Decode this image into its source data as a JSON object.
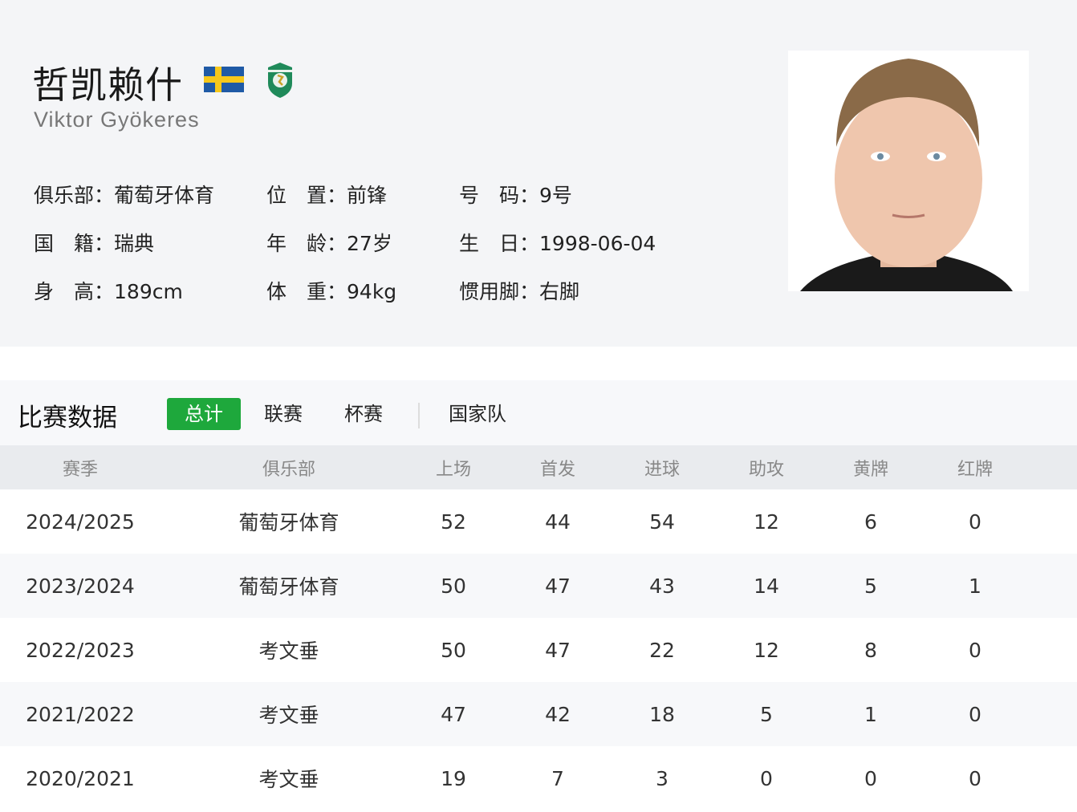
{
  "player": {
    "name_cn": "哲凯赖什",
    "name_en": "Viktor Gyökeres",
    "flag": "sweden-flag",
    "club_logo": "sporting-cp-crest"
  },
  "info": [
    {
      "label": "俱乐部：",
      "value": "葡萄牙体育"
    },
    {
      "label": "位　置：",
      "value": "前锋"
    },
    {
      "label": "号　码：",
      "value": "9号"
    },
    {
      "label": "国　籍：",
      "value": "瑞典"
    },
    {
      "label": "年　龄：",
      "value": "27岁"
    },
    {
      "label": "生　日：",
      "value": "1998-06-04"
    },
    {
      "label": "身　高：",
      "value": "189cm"
    },
    {
      "label": "体　重：",
      "value": "94kg"
    },
    {
      "label": "惯用脚：",
      "value": "右脚"
    }
  ],
  "stats": {
    "title": "比赛数据",
    "tabs": [
      {
        "label": "总计",
        "active": true
      },
      {
        "label": "联赛"
      },
      {
        "label": "杯赛"
      },
      {
        "label": "国家队"
      }
    ],
    "columns": [
      "赛季",
      "俱乐部",
      "上场",
      "首发",
      "进球",
      "助攻",
      "黄牌",
      "红牌"
    ],
    "rows": [
      [
        "2024/2025",
        "葡萄牙体育",
        "52",
        "44",
        "54",
        "12",
        "6",
        "0"
      ],
      [
        "2023/2024",
        "葡萄牙体育",
        "50",
        "47",
        "43",
        "14",
        "5",
        "1"
      ],
      [
        "2022/2023",
        "考文垂",
        "50",
        "47",
        "22",
        "12",
        "8",
        "0"
      ],
      [
        "2021/2022",
        "考文垂",
        "47",
        "42",
        "18",
        "5",
        "1",
        "0"
      ],
      [
        "2020/2021",
        "考文垂",
        "19",
        "7",
        "3",
        "0",
        "0",
        "0"
      ]
    ]
  },
  "colors": {
    "accent": "#1ea83c",
    "header_bg": "#e9ebee",
    "top_bg": "#f4f5f7"
  }
}
